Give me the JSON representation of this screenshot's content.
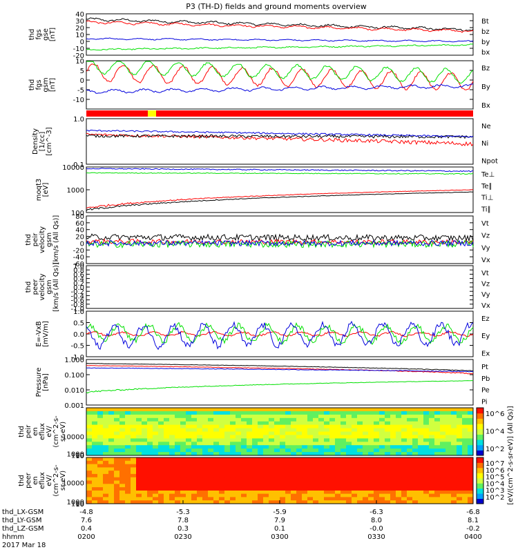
{
  "title": "P3 (TH-D) fields and ground moments overview",
  "date_label": "2017 Mar 18",
  "colors": {
    "black": "#000000",
    "red": "#ff0000",
    "green": "#00e000",
    "blue": "#0000dd",
    "yellow": "#ffff00"
  },
  "chart_data": [
    {
      "type": "line",
      "ylabel": [
        "thd",
        "fgs",
        "gse",
        "[nT]"
      ],
      "ylim": [
        -20,
        40
      ],
      "yticks": [
        "40",
        "30",
        "20",
        "10",
        "0",
        "-10",
        "-20"
      ],
      "ytick_values": [
        40,
        30,
        20,
        10,
        0,
        -10,
        -20
      ],
      "series": [
        {
          "name": "Bt",
          "color": "#000000",
          "start": 32,
          "end": 17,
          "noise": 1.2,
          "osc": 1.5
        },
        {
          "name": "bz",
          "color": "#ff0000",
          "start": 28,
          "end": 15,
          "noise": 1.0,
          "osc": 1.5
        },
        {
          "name": "by",
          "color": "#00e000",
          "start": -12,
          "end": -5,
          "noise": 0.8,
          "osc": 0.6
        },
        {
          "name": "bx",
          "color": "#0000dd",
          "start": 4,
          "end": 0,
          "noise": 0.6,
          "osc": 0.8
        }
      ]
    },
    {
      "type": "line",
      "ylabel": [
        "thd",
        "fgs",
        "gsm",
        "[nT]"
      ],
      "ylim": [
        -15,
        10
      ],
      "yticks": [
        "10",
        "5",
        "0",
        "-5",
        "-10"
      ],
      "ytick_values": [
        10,
        5,
        0,
        -5,
        -10
      ],
      "series": [
        {
          "name": "Bz",
          "color": "#ff0000",
          "start": 4,
          "end": -1,
          "noise": 0.6,
          "osc": 4.5
        },
        {
          "name": "By",
          "color": "#00e000",
          "start": 7,
          "end": 2,
          "noise": 0.5,
          "osc": 3.5
        },
        {
          "name": "Bx",
          "color": "#0000dd",
          "start": -6,
          "end": -3,
          "noise": 0.4,
          "osc": 0.8
        }
      ]
    },
    {
      "type": "bar-strip",
      "colors": [
        "#ff0000",
        "#ffff00"
      ]
    },
    {
      "type": "line",
      "log": true,
      "ylabel": [
        "Density",
        "[1/cc]",
        "[cm^-3]"
      ],
      "ylim": [
        0.1,
        1.0
      ],
      "yticks": [
        "1.0",
        "0.1"
      ],
      "ytick_values": [
        1.0,
        0.1
      ],
      "series": [
        {
          "name": "Ne",
          "color": "#ff0000",
          "start": 0.45,
          "end": 0.28,
          "noise": 0.03,
          "osc": 0
        },
        {
          "name": "Ni",
          "color": "#000000",
          "start": 0.42,
          "end": 0.4,
          "noise": 0.03,
          "osc": 0
        },
        {
          "name": "Npot",
          "color": "#0000dd",
          "start": 0.55,
          "end": 0.4,
          "noise": 0.02,
          "osc": 0
        }
      ]
    },
    {
      "type": "line",
      "log": true,
      "ylabel": [
        "moqt3",
        "[eV]"
      ],
      "ylim": [
        100,
        10000
      ],
      "yticks": [
        "10000",
        "1000",
        "100"
      ],
      "ytick_values": [
        10000,
        1000,
        100
      ],
      "series": [
        {
          "name": "Te⊥",
          "color": "#ff0000",
          "start": 160,
          "end": 1000,
          "noise": 20,
          "osc": 0
        },
        {
          "name": "Te∥",
          "color": "#000000",
          "start": 130,
          "end": 800,
          "noise": 15,
          "osc": 0
        },
        {
          "name": "Ti⊥",
          "color": "#0000dd",
          "start": 8500,
          "end": 6500,
          "noise": 400,
          "osc": 0
        },
        {
          "name": "Ti∥",
          "color": "#00e000",
          "start": 5500,
          "end": 5000,
          "noise": 200,
          "osc": 0
        }
      ]
    },
    {
      "type": "line",
      "ylabel": [
        "thd",
        "peir",
        "velocity",
        "gsm",
        "[km/s (All Qs)]"
      ],
      "ylim": [
        -60,
        80
      ],
      "yticks": [
        "80",
        "60",
        "40",
        "20",
        "0",
        "-20",
        "-40",
        "-60"
      ],
      "ytick_values": [
        80,
        60,
        40,
        20,
        0,
        -20,
        -40,
        -60
      ],
      "series": [
        {
          "name": "Vt",
          "color": "#000000",
          "start": 18,
          "end": 15,
          "noise": 9,
          "osc": 0
        },
        {
          "name": "Vz",
          "color": "#ff0000",
          "start": 5,
          "end": 3,
          "noise": 7,
          "osc": 0
        },
        {
          "name": "Vy",
          "color": "#00e000",
          "start": -3,
          "end": -2,
          "noise": 10,
          "osc": 0
        },
        {
          "name": "Vx",
          "color": "#0000dd",
          "start": 0,
          "end": 0,
          "noise": 8,
          "osc": 0
        }
      ]
    },
    {
      "type": "line",
      "ylabel": [
        "thd",
        "peer",
        "velocity",
        "gsm",
        "[km/s (All Qs)]"
      ],
      "ylim": [
        -1.0,
        1.0
      ],
      "yticks": [
        "1.0",
        "0.8",
        "0.6",
        "0.4",
        "0.2",
        "0.0",
        "-0.2",
        "-0.4",
        "-0.6",
        "-0.8",
        "-1.0"
      ],
      "ytick_values": [
        1.0,
        0.8,
        0.6,
        0.4,
        0.2,
        0.0,
        -0.2,
        -0.4,
        -0.6,
        -0.8,
        -1.0
      ],
      "series": [
        {
          "name": "Vt",
          "color": "#000000",
          "points": []
        },
        {
          "name": "Vz",
          "color": "#ff0000",
          "points": []
        },
        {
          "name": "Vy",
          "color": "#00e000",
          "points": []
        },
        {
          "name": "Vx",
          "color": "#0000dd",
          "points": []
        }
      ]
    },
    {
      "type": "line",
      "ylabel": [
        "E=-VxB",
        "[mV/m]"
      ],
      "ylim": [
        -1.0,
        1.0
      ],
      "yticks": [
        "1.0",
        "0.5",
        "0.0",
        "-0.5",
        "-1.0"
      ],
      "ytick_values": [
        1.0,
        0.5,
        0.0,
        -0.5,
        -1.0
      ],
      "series": [
        {
          "name": "Ez",
          "color": "#ff0000",
          "start": 0,
          "end": 0,
          "noise": 0.04,
          "osc": 0.08
        },
        {
          "name": "Ey",
          "color": "#00e000",
          "start": 0.05,
          "end": 0,
          "noise": 0.12,
          "osc": 0.35
        },
        {
          "name": "Ex",
          "color": "#0000dd",
          "start": -0.1,
          "end": 0,
          "noise": 0.15,
          "osc": 0.45
        }
      ]
    },
    {
      "type": "line",
      "log": true,
      "ylabel": [
        "Pressure",
        "[nPa]"
      ],
      "ylim": [
        0.001,
        1.0
      ],
      "yticks": [
        "1.000",
        "0.100",
        "0.010",
        "0.001"
      ],
      "ytick_values": [
        1.0,
        0.1,
        0.01,
        0.001
      ],
      "series": [
        {
          "name": "Pt",
          "color": "#000000",
          "start": 0.55,
          "end": 0.18,
          "noise": 0.01,
          "osc": 0
        },
        {
          "name": "Pb",
          "color": "#ff0000",
          "start": 0.4,
          "end": 0.12,
          "noise": 0.01,
          "osc": 0
        },
        {
          "name": "Pe",
          "color": "#00e000",
          "start": 0.007,
          "end": 0.04,
          "noise": 0.001,
          "osc": 0
        },
        {
          "name": "Pi",
          "color": "#0000dd",
          "start": 0.28,
          "end": 0.16,
          "noise": 0.01,
          "osc": 0
        }
      ]
    },
    {
      "type": "heatmap",
      "ylabel": [
        "thd",
        "peir",
        "en",
        "eflux",
        "eV/",
        "(cm^2-s-",
        "sr-eV)"
      ],
      "yticks": [
        "10000",
        "1000",
        "100",
        "10"
      ],
      "ytick_values": [
        10000,
        1000,
        100,
        10
      ],
      "ylim": [
        7,
        25000
      ],
      "colorbar_ticks": [
        "10^6",
        "10^4",
        "10^2"
      ]
    },
    {
      "type": "heatmap",
      "ylabel": [
        "thd",
        "peer",
        "en",
        "eflux",
        "eV/",
        "(cm^2-s-",
        "sr-eV)"
      ],
      "yticks": [
        "10000",
        "1000",
        "100",
        "10"
      ],
      "ytick_values": [
        10000,
        1000,
        100,
        10
      ],
      "ylim": [
        6,
        22000
      ],
      "colorbar_ticks": [
        "10^7",
        "10^6",
        "10^5",
        "10^4",
        "10^3",
        "10^2"
      ]
    }
  ],
  "colorbar_label": "[eV/(cm^2-s-sr-eV)] (All Qs)]",
  "x_axis": {
    "row_labels": [
      "thd_LX-GSM",
      "thd_LY-GSM",
      "thd_LZ-GSM",
      "hhmm"
    ],
    "columns": [
      {
        "values": [
          "-4.8",
          "7.6",
          "0.4",
          "0200"
        ]
      },
      {
        "values": [
          "-5.3",
          "7.8",
          "0.3",
          "0230"
        ]
      },
      {
        "values": [
          "-5.9",
          "7.9",
          "0.1",
          "0300"
        ]
      },
      {
        "values": [
          "-6.3",
          "8.0",
          "-0.0",
          "0330"
        ]
      },
      {
        "values": [
          "-6.8",
          "8.1",
          "-0.2",
          "0400"
        ]
      }
    ]
  }
}
